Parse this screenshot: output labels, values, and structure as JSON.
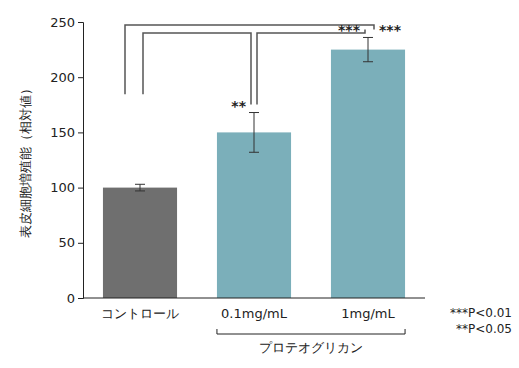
{
  "chart_data": {
    "type": "bar",
    "y_label": "表皮細胞増殖能（相対値）",
    "categories": [
      "コントロール",
      "0.1mg/mL",
      "1mg/mL"
    ],
    "values": [
      100,
      150,
      225
    ],
    "errors": [
      3,
      18,
      11
    ],
    "colors": [
      "#6f6f6f",
      "#7bafba",
      "#7bafba"
    ],
    "ylim": [
      0,
      250
    ],
    "yticks": [
      0,
      50,
      100,
      150,
      200,
      250
    ],
    "grid": false,
    "group": {
      "label": "プロテオグリカン",
      "categories": [
        "0.1mg/mL",
        "1mg/mL"
      ]
    },
    "significance": [
      {
        "categories": [
          "コントロール",
          "1mg/mL"
        ],
        "label": "***"
      },
      {
        "categories": [
          "コントロール",
          "0.1mg/mL"
        ],
        "label": "**"
      },
      {
        "categories": [
          "0.1mg/mL",
          "1mg/mL"
        ],
        "label": "***"
      }
    ],
    "notes": [
      "***P<0.01",
      "**P<0.05"
    ]
  }
}
